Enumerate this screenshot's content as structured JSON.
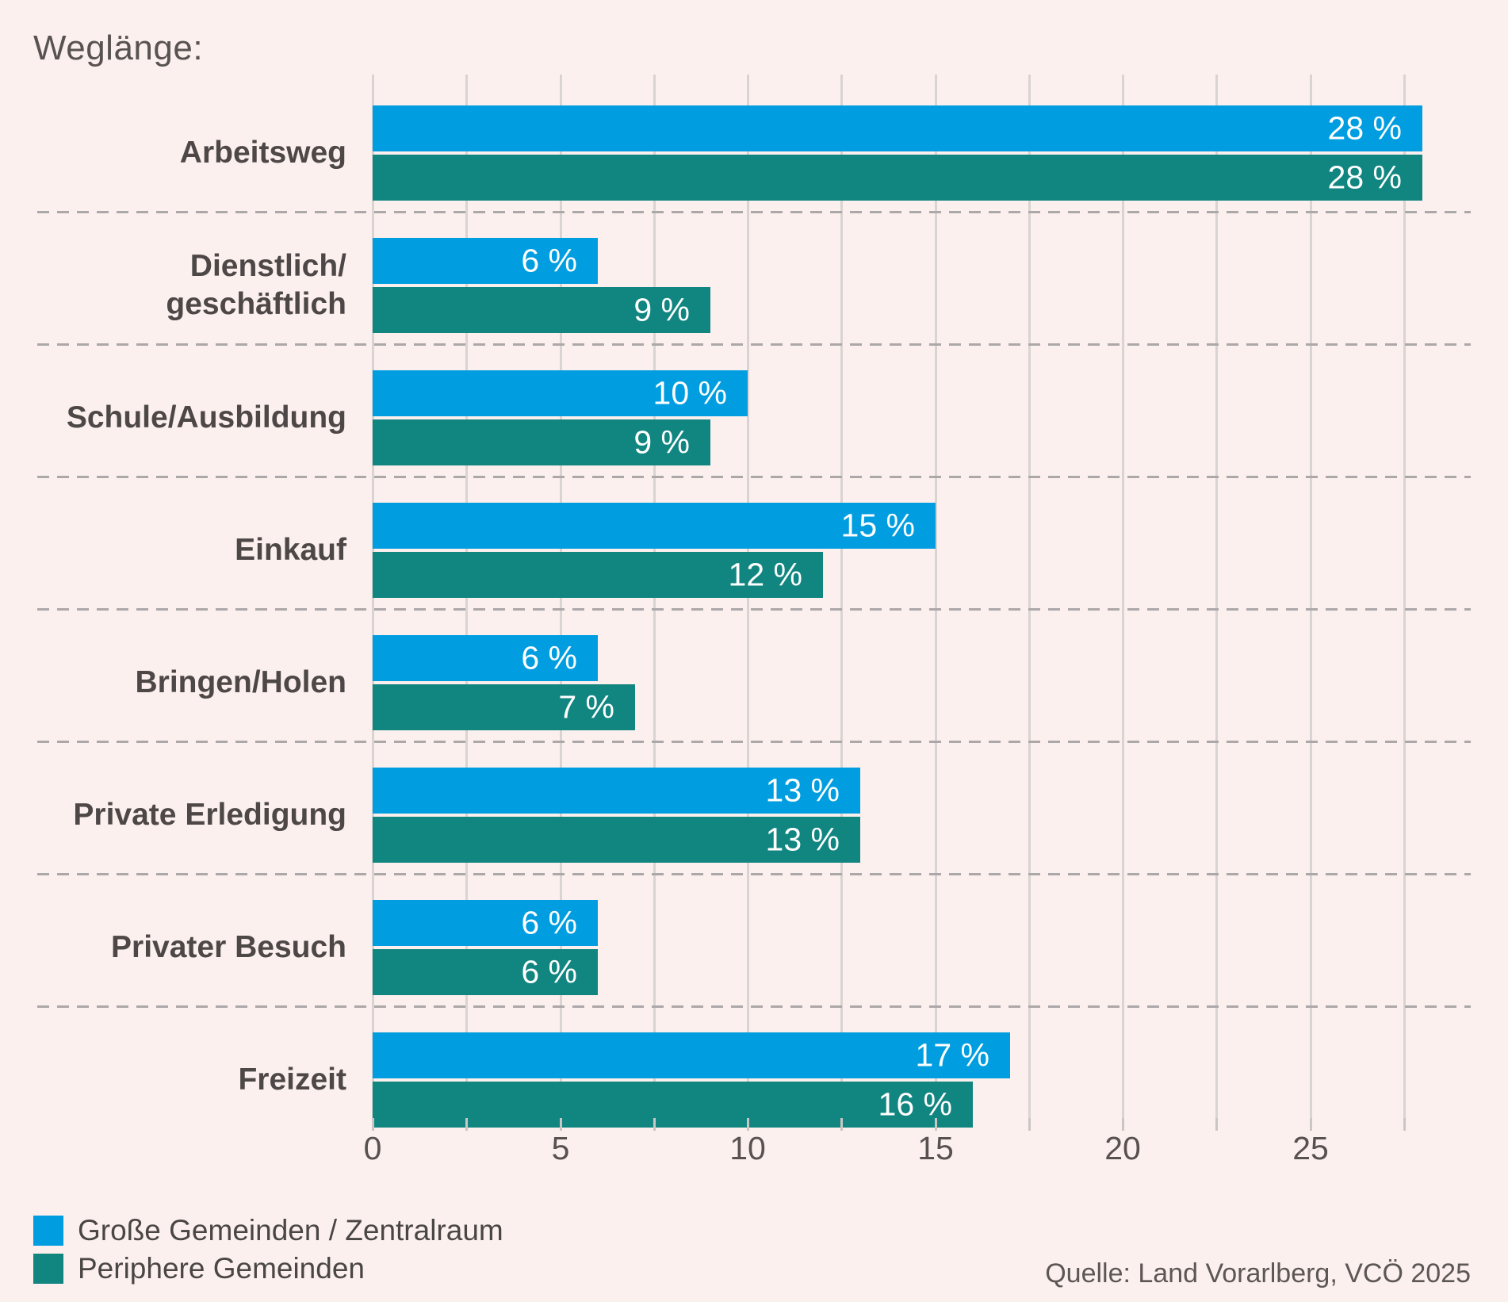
{
  "page": {
    "title": "Weglänge:",
    "source": "Quelle: Land Vorarlberg, VCÖ 2025",
    "background_color": "#FBF0ED"
  },
  "legend": {
    "position": "bottom-left",
    "items": [
      {
        "label": "Große Gemeinden / Zentralraum",
        "color": "#009EE0"
      },
      {
        "label": "Periphere Gemeinden",
        "color": "#118681"
      }
    ]
  },
  "chart_data": {
    "type": "bar",
    "orientation": "horizontal",
    "title": "Weglänge:",
    "xlabel": "",
    "ylabel": "",
    "categories": [
      "Arbeitsweg",
      "Dienstlich/geschäftlich",
      "Schule/Ausbildung",
      "Einkauf",
      "Bringen/Holen",
      "Private Erledigung",
      "Privater Besuch",
      "Freizeit"
    ],
    "category_label_lines": [
      [
        "Arbeitsweg"
      ],
      [
        "Dienstlich/",
        "geschäftlich"
      ],
      [
        "Schule/Ausbildung"
      ],
      [
        "Einkauf"
      ],
      [
        "Bringen/Holen"
      ],
      [
        "Private Erledigung"
      ],
      [
        "Privater Besuch"
      ],
      [
        "Freizeit"
      ]
    ],
    "series": [
      {
        "name": "Große Gemeinden / Zentralraum",
        "color": "#009EE0",
        "values": [
          28,
          6,
          10,
          15,
          6,
          13,
          6,
          17
        ],
        "labels": [
          "28 %",
          "6 %",
          "10 %",
          "15 %",
          "6 %",
          "13 %",
          "6 %",
          "17 %"
        ]
      },
      {
        "name": "Periphere Gemeinden",
        "color": "#118681",
        "values": [
          28,
          9,
          9,
          12,
          7,
          13,
          6,
          16
        ],
        "labels": [
          "28 %",
          "9 %",
          "9 %",
          "12 %",
          "7 %",
          "13 %",
          "6 %",
          "16 %"
        ]
      }
    ],
    "value_suffix": " %",
    "xlim": [
      0,
      29.4
    ],
    "x_major_ticks": [
      0,
      5,
      10,
      15,
      20,
      25
    ],
    "x_minor_step": 2.5,
    "grid": "vertical gridlines every 2.5 units",
    "row_separators": "dashed horizontal lines between categories",
    "legend_position": "bottom-left"
  },
  "style": {
    "gridline_color": "#D9D4D3",
    "tick_color": "#CBC6C5",
    "separator_color": "#ACA7A9",
    "title_color": "#585352",
    "category_label_color": "#4D4847",
    "axis_label_color": "#575150",
    "value_label_color": "#FFFFFF"
  }
}
